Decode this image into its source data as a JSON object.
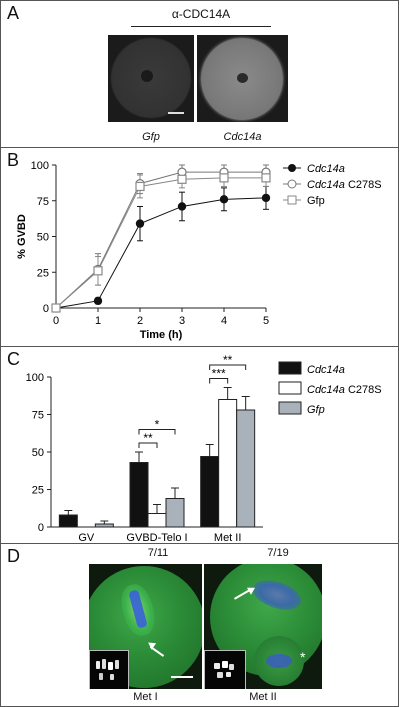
{
  "panels": {
    "A": {
      "label": "A",
      "title": "α-CDC14A",
      "captions": [
        "Gfp",
        "Cdc14a"
      ]
    },
    "B": {
      "label": "B"
    },
    "C": {
      "label": "C"
    },
    "D": {
      "label": "D",
      "counts": [
        "7/11",
        "7/19"
      ],
      "stages": [
        "Met I",
        "Met II"
      ]
    }
  },
  "chart_data": [
    {
      "type": "line",
      "panel": "B",
      "xlabel": "Time (h)",
      "ylabel": "% GVBD",
      "x": [
        0,
        1,
        2,
        3,
        4,
        5
      ],
      "xlim": [
        0,
        5
      ],
      "ylim": [
        0,
        100
      ],
      "yticks": [
        0,
        25,
        50,
        75,
        100
      ],
      "xticks": [
        0,
        1,
        2,
        3,
        4,
        5
      ],
      "legend_position": "right",
      "series": [
        {
          "name": "Cdc14a",
          "italic": true,
          "marker": "filled-circle",
          "values": [
            0,
            5,
            59,
            71,
            76,
            77
          ],
          "err": [
            0,
            2,
            12,
            10,
            8,
            8
          ]
        },
        {
          "name": "Cdc14a C278S",
          "italic_part": "Cdc14a",
          "marker": "open-circle",
          "values": [
            0,
            27,
            87,
            95,
            95,
            95
          ],
          "err": [
            0,
            11,
            7,
            5,
            5,
            5
          ]
        },
        {
          "name": "Gfp",
          "marker": "open-square",
          "values": [
            0,
            26,
            85,
            90,
            91,
            91
          ],
          "err": [
            0,
            10,
            8,
            6,
            6,
            6
          ]
        }
      ]
    },
    {
      "type": "bar",
      "panel": "C",
      "categories": [
        "GV",
        "GVBD-Telo I",
        "Met II"
      ],
      "ylim": [
        0,
        100
      ],
      "yticks": [
        0,
        25,
        50,
        75,
        100
      ],
      "legend_position": "right",
      "series": [
        {
          "name": "Cdc14a",
          "italic": true,
          "color": "#111111",
          "values": [
            8,
            43,
            47
          ],
          "err": [
            3,
            7,
            8
          ]
        },
        {
          "name": "Cdc14a C278S",
          "italic_part": "Cdc14a",
          "color": "#ffffff",
          "values": [
            0,
            9,
            85
          ],
          "err": [
            0,
            6,
            8
          ]
        },
        {
          "name": "Gfp",
          "italic": true,
          "color": "#a9b2ba",
          "values": [
            2,
            19,
            78
          ],
          "err": [
            2,
            7,
            9
          ]
        }
      ],
      "significance": [
        {
          "label": "**",
          "category": 1,
          "from": 0,
          "to": 1
        },
        {
          "label": "*",
          "category": 1,
          "from": 0,
          "to": 2
        },
        {
          "label": "***",
          "category": 2,
          "from": 0,
          "to": 1
        },
        {
          "label": "**",
          "category": 2,
          "from": 0,
          "to": 2
        }
      ]
    }
  ]
}
